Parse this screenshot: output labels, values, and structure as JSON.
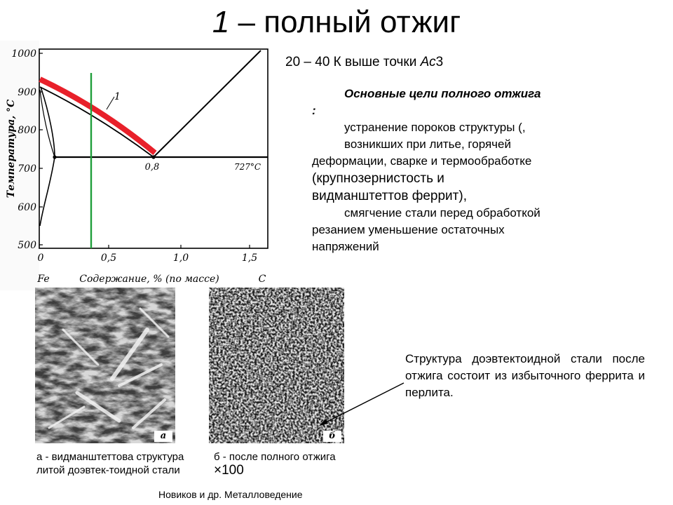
{
  "title": {
    "number": "1",
    "text": "– полный отжиг"
  },
  "subtitle": {
    "prefix": "20 – 40 К выше точки ",
    "point_italic": "Ас",
    "point_suffix": "3"
  },
  "goals": {
    "heading": "Основные цели полного отжига",
    "colon": ":",
    "line1": "устранение пороков структуры (,",
    "line2": "возникших при литье, горячей",
    "line3": "деформации, сварке и термообработке",
    "line4": "(крупнозернистость и",
    "line5": "видманштеттов феррит),",
    "line6": "смягчение стали перед обработкой",
    "line7": "резанием уменьшение остаточных",
    "line8": "напряжений"
  },
  "diagram": {
    "y_axis_label": "Температура, °С",
    "x_axis_label": "Содержание, % (по массе)",
    "x_left_label": "Fe",
    "x_right_label": "С",
    "y_ticks": [
      "500",
      "600",
      "700",
      "800",
      "900",
      "1000"
    ],
    "x_ticks": [
      "0",
      "0,5",
      "1,0",
      "1,5"
    ],
    "eutectoid_label": "0,8",
    "isotherm_label": "727°C",
    "curve_label": "1",
    "colors": {
      "band": "#e8202a",
      "marker_line": "#1f9e3a",
      "lines": "#000000"
    }
  },
  "micrographs": {
    "a": {
      "corner_label": "а",
      "caption": "а - видманштеттова структура литой доэвтек-тоидной стали"
    },
    "b": {
      "corner_label": "б",
      "caption_text": "б - после полного отжига",
      "caption_mult": "×100"
    }
  },
  "structure_note": "Структура доэвтектоидной стали после отжига состоит из избыточного феррита и перлита.",
  "source": "Новиков и др. Металловедение"
}
